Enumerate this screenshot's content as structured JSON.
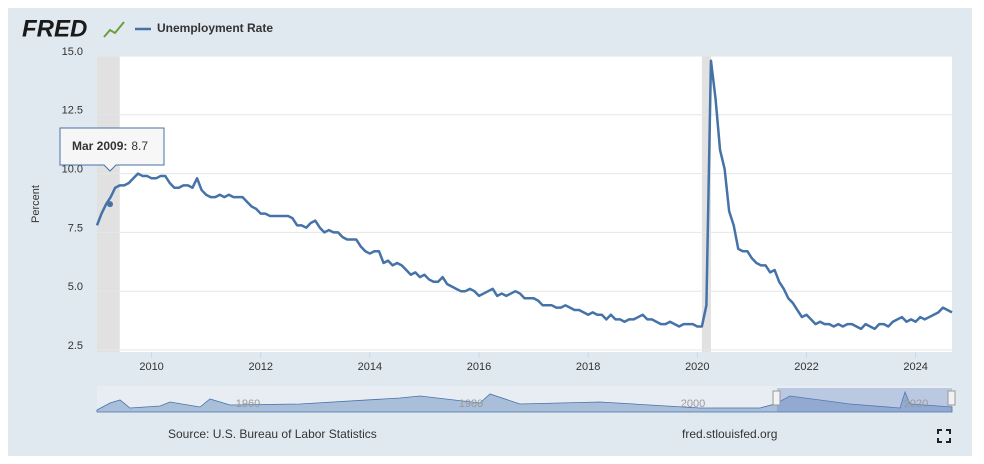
{
  "logo": "FRED",
  "source": "Source: U.S. Bureau of Labor Statistics",
  "site": "fred.stlouisfed.org",
  "navigator_labels": [
    "1960",
    "1980",
    "2000",
    "2020"
  ],
  "chart_data": {
    "type": "line",
    "y_label": "Percent",
    "x": [
      "2009-01",
      "2009-02",
      "2009-03",
      "2009-04",
      "2009-05",
      "2009-06",
      "2009-07",
      "2009-08",
      "2009-09",
      "2009-10",
      "2009-11",
      "2009-12",
      "2010-01",
      "2010-02",
      "2010-03",
      "2010-04",
      "2010-05",
      "2010-06",
      "2010-07",
      "2010-08",
      "2010-09",
      "2010-10",
      "2010-11",
      "2010-12",
      "2011-01",
      "2011-02",
      "2011-03",
      "2011-04",
      "2011-05",
      "2011-06",
      "2011-07",
      "2011-08",
      "2011-09",
      "2011-10",
      "2011-11",
      "2011-12",
      "2012-01",
      "2012-02",
      "2012-03",
      "2012-04",
      "2012-05",
      "2012-06",
      "2012-07",
      "2012-08",
      "2012-09",
      "2012-10",
      "2012-11",
      "2012-12",
      "2013-01",
      "2013-02",
      "2013-03",
      "2013-04",
      "2013-05",
      "2013-06",
      "2013-07",
      "2013-08",
      "2013-09",
      "2013-10",
      "2013-11",
      "2013-12",
      "2014-01",
      "2014-02",
      "2014-03",
      "2014-04",
      "2014-05",
      "2014-06",
      "2014-07",
      "2014-08",
      "2014-09",
      "2014-10",
      "2014-11",
      "2014-12",
      "2015-01",
      "2015-02",
      "2015-03",
      "2015-04",
      "2015-05",
      "2015-06",
      "2015-07",
      "2015-08",
      "2015-09",
      "2015-10",
      "2015-11",
      "2015-12",
      "2016-01",
      "2016-02",
      "2016-03",
      "2016-04",
      "2016-05",
      "2016-06",
      "2016-07",
      "2016-08",
      "2016-09",
      "2016-10",
      "2016-11",
      "2016-12",
      "2017-01",
      "2017-02",
      "2017-03",
      "2017-04",
      "2017-05",
      "2017-06",
      "2017-07",
      "2017-08",
      "2017-09",
      "2017-10",
      "2017-11",
      "2017-12",
      "2018-01",
      "2018-02",
      "2018-03",
      "2018-04",
      "2018-05",
      "2018-06",
      "2018-07",
      "2018-08",
      "2018-09",
      "2018-10",
      "2018-11",
      "2018-12",
      "2019-01",
      "2019-02",
      "2019-03",
      "2019-04",
      "2019-05",
      "2019-06",
      "2019-07",
      "2019-08",
      "2019-09",
      "2019-10",
      "2019-11",
      "2019-12",
      "2020-01",
      "2020-02",
      "2020-03",
      "2020-04",
      "2020-05",
      "2020-06",
      "2020-07",
      "2020-08",
      "2020-09",
      "2020-10",
      "2020-11",
      "2020-12",
      "2021-01",
      "2021-02",
      "2021-03",
      "2021-04",
      "2021-05",
      "2021-06",
      "2021-07",
      "2021-08",
      "2021-09",
      "2021-10",
      "2021-11",
      "2021-12",
      "2022-01",
      "2022-02",
      "2022-03",
      "2022-04",
      "2022-05",
      "2022-06",
      "2022-07",
      "2022-08",
      "2022-09",
      "2022-10",
      "2022-11",
      "2022-12",
      "2023-01",
      "2023-02",
      "2023-03",
      "2023-04",
      "2023-05",
      "2023-06",
      "2023-07",
      "2023-08",
      "2023-09",
      "2023-10",
      "2023-11",
      "2023-12",
      "2024-01",
      "2024-02",
      "2024-03",
      "2024-04",
      "2024-05",
      "2024-06",
      "2024-07",
      "2024-08",
      "2024-09"
    ],
    "series": [
      {
        "name": "Unemployment Rate",
        "color": "#4572a7",
        "values": [
          7.8,
          8.3,
          8.7,
          9.0,
          9.4,
          9.5,
          9.5,
          9.6,
          9.8,
          10.0,
          9.9,
          9.9,
          9.8,
          9.8,
          9.9,
          9.9,
          9.6,
          9.4,
          9.4,
          9.5,
          9.5,
          9.4,
          9.8,
          9.3,
          9.1,
          9.0,
          9.0,
          9.1,
          9.0,
          9.1,
          9.0,
          9.0,
          9.0,
          8.8,
          8.6,
          8.5,
          8.3,
          8.3,
          8.2,
          8.2,
          8.2,
          8.2,
          8.2,
          8.1,
          7.8,
          7.8,
          7.7,
          7.9,
          8.0,
          7.7,
          7.5,
          7.6,
          7.5,
          7.5,
          7.3,
          7.2,
          7.2,
          7.2,
          6.9,
          6.7,
          6.6,
          6.7,
          6.7,
          6.2,
          6.3,
          6.1,
          6.2,
          6.1,
          5.9,
          5.7,
          5.8,
          5.6,
          5.7,
          5.5,
          5.4,
          5.4,
          5.6,
          5.3,
          5.2,
          5.1,
          5.0,
          5.0,
          5.1,
          5.0,
          4.8,
          4.9,
          5.0,
          5.1,
          4.8,
          4.9,
          4.8,
          4.9,
          5.0,
          4.9,
          4.7,
          4.7,
          4.7,
          4.6,
          4.4,
          4.4,
          4.4,
          4.3,
          4.3,
          4.4,
          4.3,
          4.2,
          4.2,
          4.1,
          4.0,
          4.1,
          4.0,
          4.0,
          3.8,
          4.0,
          3.8,
          3.8,
          3.7,
          3.8,
          3.8,
          3.9,
          4.0,
          3.8,
          3.8,
          3.7,
          3.6,
          3.6,
          3.7,
          3.6,
          3.5,
          3.6,
          3.6,
          3.6,
          3.5,
          3.5,
          4.4,
          14.8,
          13.2,
          11.0,
          10.2,
          8.4,
          7.8,
          6.8,
          6.7,
          6.7,
          6.4,
          6.2,
          6.1,
          6.1,
          5.8,
          5.9,
          5.4,
          5.1,
          4.7,
          4.5,
          4.2,
          3.9,
          4.0,
          3.8,
          3.6,
          3.7,
          3.6,
          3.6,
          3.5,
          3.6,
          3.5,
          3.6,
          3.6,
          3.5,
          3.4,
          3.6,
          3.5,
          3.4,
          3.6,
          3.6,
          3.5,
          3.7,
          3.8,
          3.9,
          3.7,
          3.8,
          3.7,
          3.9,
          3.8,
          3.9,
          4.0,
          4.1,
          4.3,
          4.2,
          4.1
        ]
      }
    ],
    "recessions": [
      [
        "2009-01",
        "2009-06"
      ],
      [
        "2020-02",
        "2020-04"
      ]
    ],
    "xlim": [
      "2009-01",
      "2024-09"
    ],
    "xticks": [
      2010,
      2012,
      2014,
      2016,
      2018,
      2020,
      2022,
      2024
    ],
    "ylim": [
      2.5,
      15
    ],
    "yticks": [
      2.5,
      {
        "value": 5,
        "label": "5.0"
      },
      7.5,
      {
        "value": 10,
        "label": "10.0"
      },
      12.5,
      {
        "value": 15,
        "label": "15.0"
      }
    ],
    "grid": true,
    "tooltip": {
      "date_label": "Mar 2009:",
      "value": 8.7
    }
  }
}
